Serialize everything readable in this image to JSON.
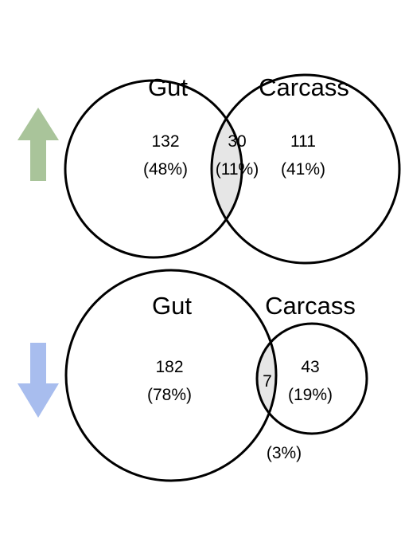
{
  "colors": {
    "up_arrow": "#a9c49a",
    "down_arrow": "#a8bdee",
    "overlap_fill": "#e6e6e6",
    "outline": "#000000"
  },
  "diagrams": [
    {
      "direction": "up",
      "arrow_icon": "up-arrow-icon",
      "set_a_label": "Gut",
      "set_b_label": "Carcass",
      "a_only_count": "132",
      "a_only_pct": "(48%)",
      "overlap_count": "30",
      "overlap_pct": "(11%)",
      "b_only_count": "111",
      "b_only_pct": "(41%)"
    },
    {
      "direction": "down",
      "arrow_icon": "down-arrow-icon",
      "set_a_label": "Gut",
      "set_b_label": "Carcass",
      "a_only_count": "182",
      "a_only_pct": "(78%)",
      "overlap_count": "7",
      "overlap_pct": "(3%)",
      "b_only_count": "43",
      "b_only_pct": "(19%)"
    }
  ]
}
